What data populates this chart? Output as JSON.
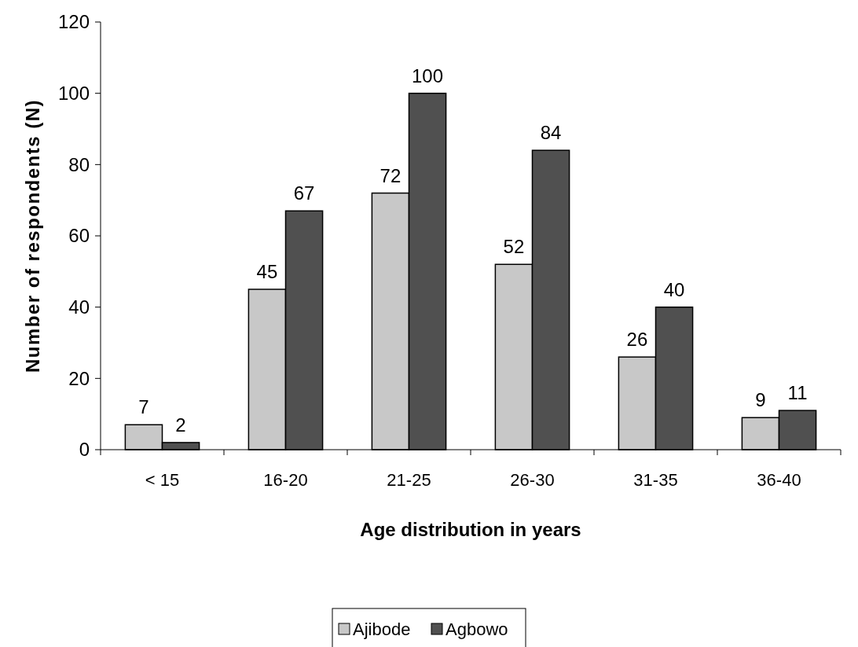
{
  "chart_data": {
    "type": "bar",
    "xlabel": "Age distribution in years",
    "ylabel": "Number of respondents (N)",
    "categories": [
      "< 15",
      "16-20",
      "21-25",
      "26-30",
      "31-35",
      "36-40"
    ],
    "series": [
      {
        "name": "Ajibode",
        "color": "#c8c8c8",
        "values": [
          7,
          45,
          72,
          52,
          26,
          9
        ]
      },
      {
        "name": "Agbowo",
        "color": "#505050",
        "values": [
          2,
          67,
          100,
          84,
          40,
          11
        ]
      }
    ],
    "ylim": [
      0,
      120
    ],
    "yticks": [
      0,
      20,
      40,
      60,
      80,
      100,
      120
    ],
    "grid": false,
    "legend": "bottom",
    "data_labels": true
  }
}
